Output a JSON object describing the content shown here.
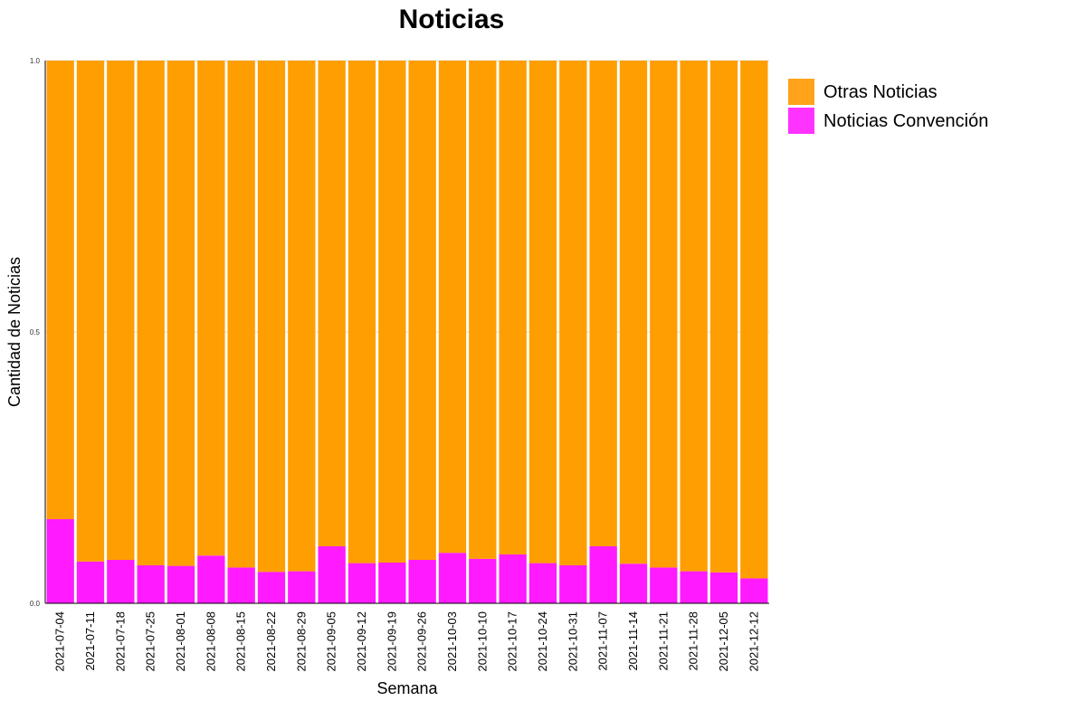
{
  "chart_data": {
    "type": "bar",
    "stacked": true,
    "title": "Noticias",
    "xlabel": "Semana",
    "ylabel": "Cantidad de Noticias",
    "ylim": [
      0,
      1
    ],
    "yticks": [
      "0.0",
      "0.5",
      "1.0"
    ],
    "grid": true,
    "legend_position": "right",
    "categories": [
      "2021-07-04",
      "2021-07-11",
      "2021-07-18",
      "2021-07-25",
      "2021-08-01",
      "2021-08-08",
      "2021-08-15",
      "2021-08-22",
      "2021-08-29",
      "2021-09-05",
      "2021-09-12",
      "2021-09-19",
      "2021-09-26",
      "2021-10-03",
      "2021-10-10",
      "2021-10-17",
      "2021-10-24",
      "2021-10-31",
      "2021-11-07",
      "2021-11-14",
      "2021-11-21",
      "2021-11-28",
      "2021-12-05",
      "2021-12-12"
    ],
    "series": [
      {
        "name": "Noticias Convención",
        "color": "#ff1aff",
        "legend_color": "#ff33ff",
        "values": [
          0.155,
          0.077,
          0.08,
          0.07,
          0.069,
          0.088,
          0.066,
          0.058,
          0.059,
          0.105,
          0.074,
          0.075,
          0.08,
          0.093,
          0.082,
          0.09,
          0.074,
          0.07,
          0.105,
          0.073,
          0.066,
          0.059,
          0.057,
          0.046
        ]
      },
      {
        "name": "Otras Noticias",
        "color": "#ff9e00",
        "legend_color": "#ffa31a",
        "values": [
          0.845,
          0.923,
          0.92,
          0.93,
          0.931,
          0.912,
          0.934,
          0.942,
          0.941,
          0.895,
          0.926,
          0.925,
          0.92,
          0.907,
          0.918,
          0.91,
          0.926,
          0.93,
          0.895,
          0.927,
          0.934,
          0.941,
          0.943,
          0.954
        ]
      }
    ],
    "legend_order": [
      "Otras Noticias",
      "Noticias Convención"
    ]
  }
}
